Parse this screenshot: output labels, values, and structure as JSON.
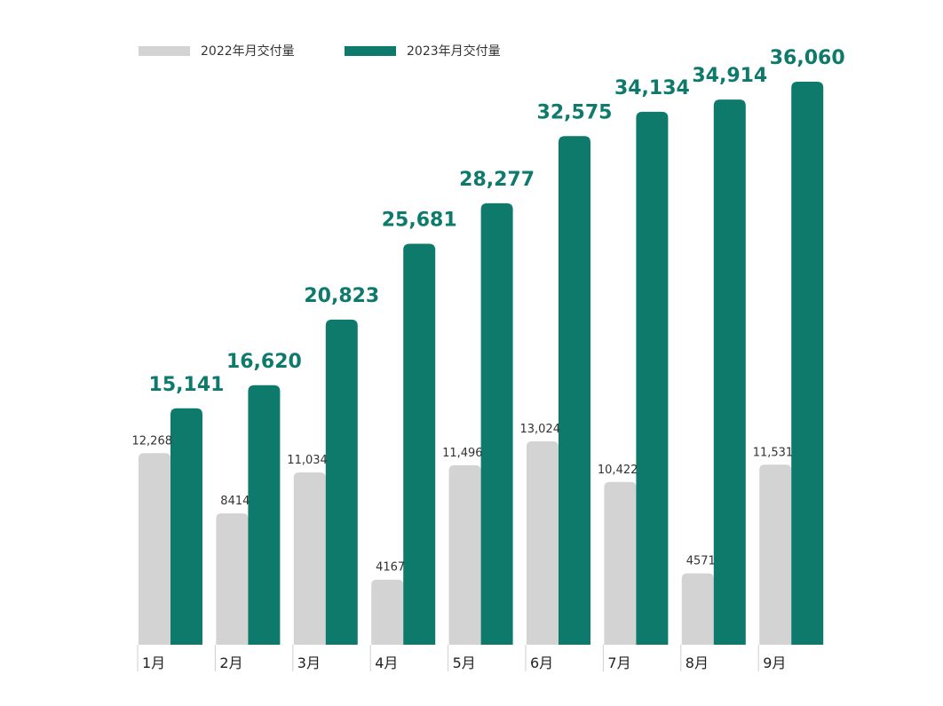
{
  "chart_data": {
    "type": "bar",
    "title": "",
    "xlabel": "",
    "ylabel": "",
    "legend_position": "top-left",
    "grid": false,
    "ylim": [
      0,
      40000
    ],
    "categories": [
      "1月",
      "2月",
      "3月",
      "4月",
      "5月",
      "6月",
      "7月",
      "8月",
      "9月"
    ],
    "series": [
      {
        "name": "2022年月交付量",
        "color": "#d3d3d3",
        "values": [
          12268,
          8414,
          11034,
          4167,
          11496,
          13024,
          10422,
          4571,
          11531
        ],
        "labels": [
          "12,268",
          "8414",
          "11,034",
          "4167",
          "11,496",
          "13,024",
          "10,422",
          "4571",
          "11,531"
        ]
      },
      {
        "name": "2023年月交付量",
        "color": "#0e7a6c",
        "values": [
          15141,
          16620,
          20823,
          25681,
          28277,
          32575,
          34134,
          34914,
          36060
        ],
        "labels": [
          "15,141",
          "16,620",
          "20,823",
          "25,681",
          "28,277",
          "32,575",
          "34,134",
          "34,914",
          "36,060"
        ]
      }
    ]
  }
}
